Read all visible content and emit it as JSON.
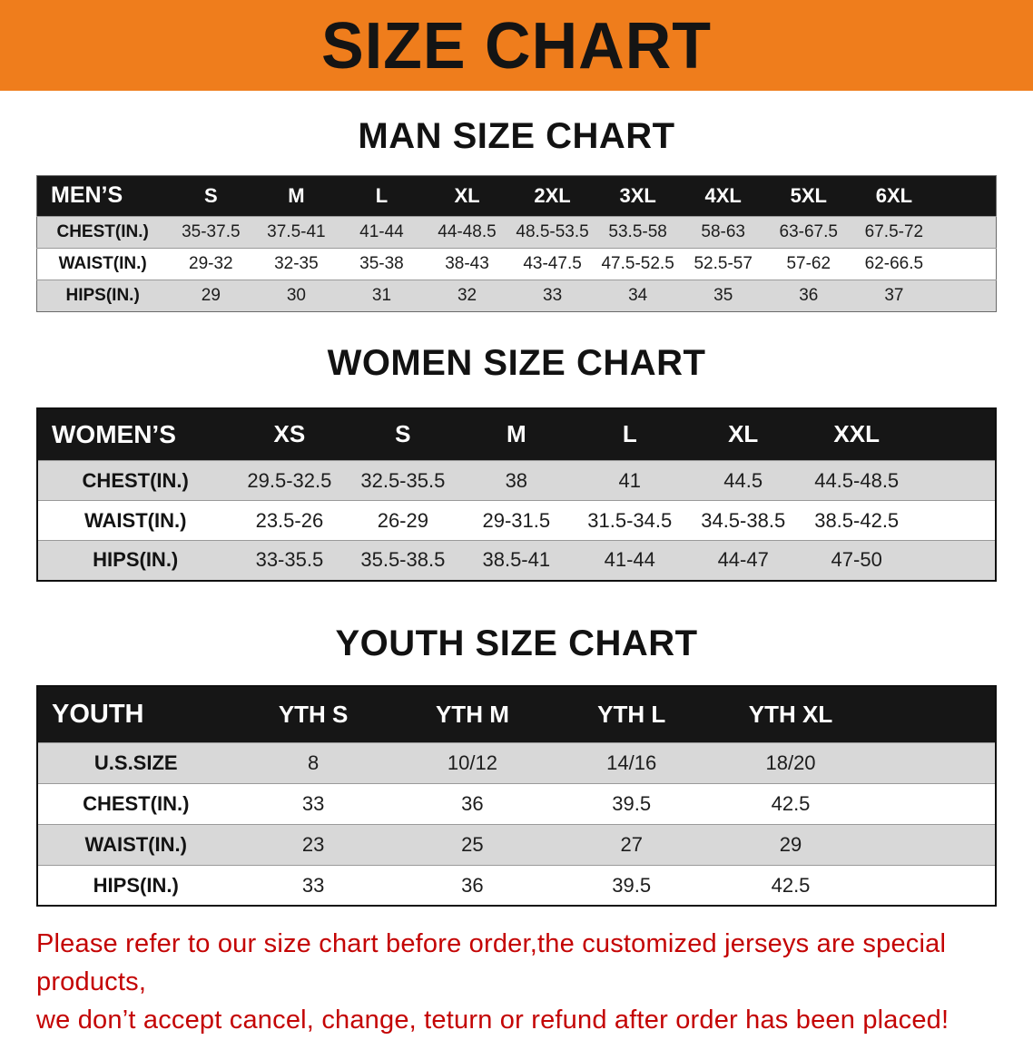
{
  "banner": {
    "title": "SIZE CHART",
    "background_color": "#ef7d1c",
    "text_color": "#141414"
  },
  "sections": [
    {
      "heading": "MAN SIZE CHART",
      "table": {
        "header": [
          "MEN’S",
          "S",
          "M",
          "L",
          "XL",
          "2XL",
          "3XL",
          "4XL",
          "5XL",
          "6XL"
        ],
        "rows": [
          [
            "CHEST(IN.)",
            "35-37.5",
            "37.5-41",
            "41-44",
            "44-48.5",
            "48.5-53.5",
            "53.5-58",
            "58-63",
            "63-67.5",
            "67.5-72"
          ],
          [
            "WAIST(IN.)",
            "29-32",
            "32-35",
            "35-38",
            "38-43",
            "43-47.5",
            "47.5-52.5",
            "52.5-57",
            "57-62",
            "62-66.5"
          ],
          [
            "HIPS(IN.)",
            "29",
            "30",
            "31",
            "32",
            "33",
            "34",
            "35",
            "36",
            "37"
          ]
        ]
      }
    },
    {
      "heading": "WOMEN SIZE CHART",
      "table": {
        "header": [
          "WOMEN’S",
          "XS",
          "S",
          "M",
          "L",
          "XL",
          "XXL"
        ],
        "rows": [
          [
            "CHEST(IN.)",
            "29.5-32.5",
            "32.5-35.5",
            "38",
            "41",
            "44.5",
            "44.5-48.5"
          ],
          [
            "WAIST(IN.)",
            "23.5-26",
            "26-29",
            "29-31.5",
            "31.5-34.5",
            "34.5-38.5",
            "38.5-42.5"
          ],
          [
            "HIPS(IN.)",
            "33-35.5",
            "35.5-38.5",
            "38.5-41",
            "41-44",
            "44-47",
            "47-50"
          ]
        ]
      }
    },
    {
      "heading": "YOUTH SIZE CHART",
      "table": {
        "header": [
          "YOUTH",
          "YTH S",
          "YTH M",
          "YTH L",
          "YTH XL"
        ],
        "rows": [
          [
            "U.S.SIZE",
            "8",
            "10/12",
            "14/16",
            "18/20"
          ],
          [
            "CHEST(IN.)",
            "33",
            "36",
            "39.5",
            "42.5"
          ],
          [
            "WAIST(IN.)",
            "23",
            "25",
            "27",
            "29"
          ],
          [
            "HIPS(IN.)",
            "33",
            "36",
            "39.5",
            "42.5"
          ]
        ]
      }
    }
  ],
  "disclaimer": {
    "line1": "Please refer to our size chart before order,the customized jerseys are special products,",
    "line2": "we don’t accept cancel, change, teturn or refund after order has been placed!",
    "color": "#c40404"
  },
  "colors": {
    "banner_orange": "#ef7d1c",
    "table_header_black": "#161616",
    "row_stripe_gray": "#d8d8d8"
  }
}
